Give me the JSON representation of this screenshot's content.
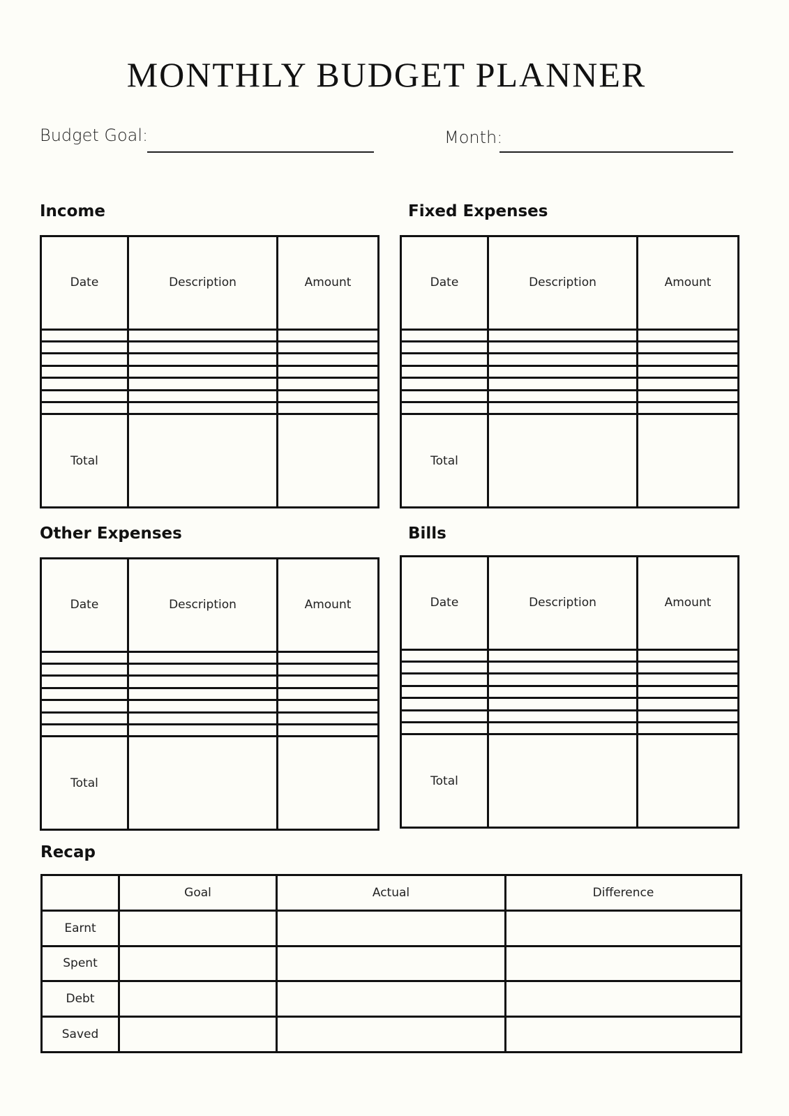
{
  "title": "MONTHLY BUDGET PLANNER",
  "fields": {
    "budget_goal_label": "Budget Goal:",
    "budget_goal_value": "",
    "month_label": "Month:",
    "month_value": ""
  },
  "sections": [
    {
      "id": "income",
      "heading": "Income",
      "columns": [
        "Date",
        "Description",
        "Amount"
      ],
      "empty_rows": 7,
      "total_label": "Total"
    },
    {
      "id": "fixed-expenses",
      "heading": "Fixed Expenses",
      "columns": [
        "Date",
        "Description",
        "Amount"
      ],
      "empty_rows": 7,
      "total_label": "Total"
    },
    {
      "id": "other-expenses",
      "heading": "Other Expenses",
      "columns": [
        "Date",
        "Description",
        "Amount"
      ],
      "empty_rows": 7,
      "total_label": "Total"
    },
    {
      "id": "bills",
      "heading": "Bills",
      "columns": [
        "Date",
        "Description",
        "Amount"
      ],
      "empty_rows": 7,
      "total_label": "Total"
    }
  ],
  "recap": {
    "heading": "Recap",
    "columns": [
      "",
      "Goal",
      "Actual",
      "Difference"
    ],
    "rows": [
      "Earnt",
      "Spent",
      "Debt",
      "Saved"
    ]
  }
}
